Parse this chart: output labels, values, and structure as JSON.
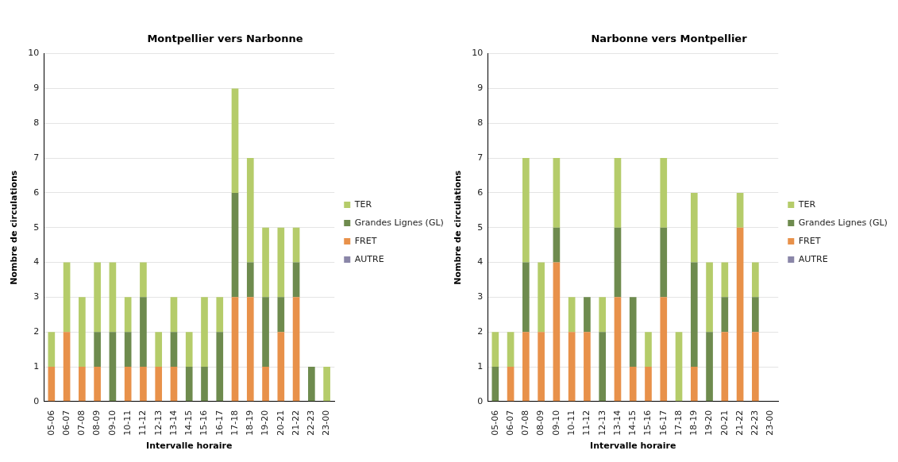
{
  "chart_data": [
    {
      "type": "bar",
      "title": "Montpellier vers Narbonne",
      "xlabel": "Intervalle horaire",
      "ylabel": "Nombre de circulations",
      "stacked": true,
      "categories": [
        "05-06",
        "06-07",
        "07-08",
        "08-09",
        "09-10",
        "10-11",
        "11-12",
        "12-13",
        "13-14",
        "14-15",
        "15-16",
        "16-17",
        "17-18",
        "18-19",
        "19-20",
        "20-21",
        "21-22",
        "22-23",
        "23-00"
      ],
      "series": [
        {
          "name": "AUTRE",
          "color": "#8a86a8",
          "values": [
            0,
            0,
            0,
            0,
            0,
            0,
            0,
            0,
            0,
            0,
            0,
            0,
            0,
            0,
            0,
            0,
            0,
            0,
            0
          ]
        },
        {
          "name": "FRET",
          "color": "#e8914a",
          "values": [
            1,
            2,
            1,
            1,
            0,
            1,
            1,
            1,
            1,
            0,
            0,
            0,
            3,
            3,
            1,
            2,
            3,
            0,
            0
          ]
        },
        {
          "name": "Grandes Lignes (GL)",
          "color": "#6e8b4e",
          "values": [
            0,
            0,
            0,
            1,
            2,
            1,
            2,
            0,
            1,
            1,
            1,
            2,
            3,
            1,
            2,
            1,
            1,
            1,
            0
          ]
        },
        {
          "name": "TER",
          "color": "#b5cc6a",
          "values": [
            1,
            2,
            2,
            2,
            2,
            1,
            1,
            1,
            1,
            1,
            2,
            1,
            3,
            3,
            2,
            2,
            1,
            0,
            1
          ]
        }
      ],
      "ylim": [
        0,
        10
      ],
      "yticks": [
        0,
        1,
        2,
        3,
        4,
        5,
        6,
        7,
        8,
        9,
        10
      ],
      "grid": "y",
      "legend": "right"
    },
    {
      "type": "bar",
      "title": "Narbonne vers Montpellier",
      "xlabel": "Intervalle horaire",
      "ylabel": "Nombre de circulations",
      "stacked": true,
      "categories": [
        "05-06",
        "06-07",
        "07-08",
        "08-09",
        "09-10",
        "10-11",
        "11-12",
        "12-13",
        "13-14",
        "14-15",
        "15-16",
        "16-17",
        "17-18",
        "18-19",
        "19-20",
        "20-21",
        "21-22",
        "22-23",
        "23-00"
      ],
      "series": [
        {
          "name": "AUTRE",
          "color": "#8a86a8",
          "values": [
            0,
            0,
            0,
            0,
            0,
            0,
            0,
            0,
            0,
            0,
            0,
            0,
            0,
            0,
            0,
            0,
            0,
            0,
            0
          ]
        },
        {
          "name": "FRET",
          "color": "#e8914a",
          "values": [
            0,
            1,
            2,
            2,
            4,
            2,
            2,
            0,
            3,
            1,
            1,
            3,
            0,
            1,
            0,
            2,
            5,
            2,
            0
          ]
        },
        {
          "name": "Grandes Lignes (GL)",
          "color": "#6e8b4e",
          "values": [
            1,
            0,
            2,
            0,
            1,
            0,
            1,
            2,
            2,
            2,
            0,
            2,
            0,
            3,
            2,
            1,
            0,
            1,
            0
          ]
        },
        {
          "name": "TER",
          "color": "#b5cc6a",
          "values": [
            1,
            1,
            3,
            2,
            2,
            1,
            0,
            1,
            2,
            0,
            1,
            2,
            2,
            2,
            2,
            1,
            1,
            1,
            0
          ]
        }
      ],
      "ylim": [
        0,
        10
      ],
      "yticks": [
        0,
        1,
        2,
        3,
        4,
        5,
        6,
        7,
        8,
        9,
        10
      ],
      "grid": "y",
      "legend": "right"
    }
  ]
}
